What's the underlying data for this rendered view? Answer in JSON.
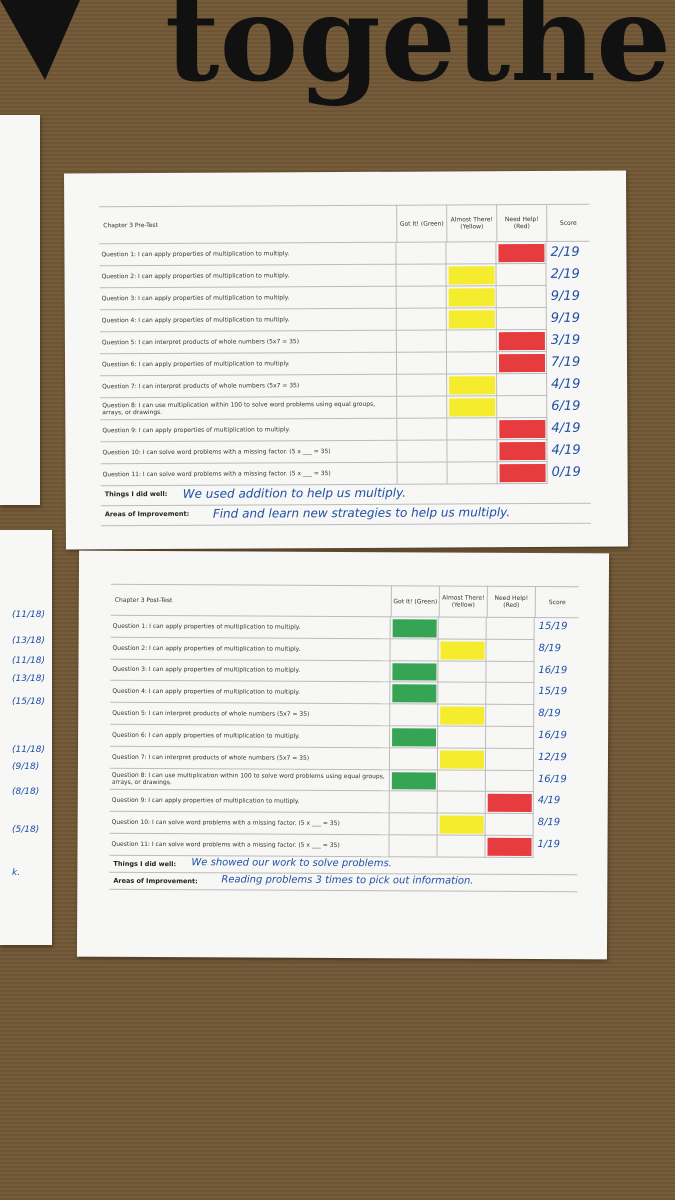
{
  "banner": {
    "text": "togethe"
  },
  "side_sheet": {
    "scores": [
      "(11/18)",
      "(13/18)",
      "(11/18)",
      "(13/18)",
      "(15/18)",
      "(11/18)",
      "(9/18)",
      "(8/18)",
      "(5/18)",
      "k."
    ]
  },
  "sheets": [
    {
      "title": "Chapter 3 Pre-Test",
      "headers": [
        "Got It! (Green)",
        "Almost There! (Yellow)",
        "Need Help! (Red)",
        "Score"
      ],
      "rows": [
        {
          "question": "Question 1: I can apply properties of multiplication to multiply.",
          "rating": "red",
          "score": "2/19"
        },
        {
          "question": "Question 2: I can apply properties of multiplication to multiply.",
          "rating": "yellow",
          "score": "2/19"
        },
        {
          "question": "Question 3: I can apply properties of multiplication to multiply.",
          "rating": "yellow",
          "score": "9/19"
        },
        {
          "question": "Question 4: I can apply properties of multiplication to multiply.",
          "rating": "yellow",
          "score": "9/19"
        },
        {
          "question": "Question 5: I can interpret products of whole numbers (5x7 = 35)",
          "rating": "red",
          "score": "3/19"
        },
        {
          "question": "Question 6: I can apply properties of multiplication to multiply.",
          "rating": "red",
          "score": "7/19"
        },
        {
          "question": "Question 7: I can interpret products of whole numbers (5x7 = 35)",
          "rating": "yellow",
          "score": "4/19"
        },
        {
          "question": "Question 8: I can use multiplication within 100 to solve word problems using equal groups, arrays, or drawings.",
          "rating": "yellow",
          "score": "6/19"
        },
        {
          "question": "Question 9: I can apply properties of multiplication to multiply.",
          "rating": "red",
          "score": "4/19"
        },
        {
          "question": "Question 10: I can solve word problems with a missing factor. (5 x ___ = 35)",
          "rating": "red",
          "score": "4/19"
        },
        {
          "question": "Question 11: I can solve word problems with a missing factor. (5 x ___ = 35)",
          "rating": "red",
          "score": "0/19"
        }
      ],
      "well_label": "Things I did well:",
      "well": "We used addition to help us multiply.",
      "improve_label": "Areas of Improvement:",
      "improve": "Find and learn new strategies to help us multiply."
    },
    {
      "title": "Chapter 3 Post-Test",
      "headers": [
        "Got It! (Green)",
        "Almost There! (Yellow)",
        "Need Help! (Red)",
        "Score"
      ],
      "rows": [
        {
          "question": "Question 1: I can apply properties of multiplication to multiply.",
          "rating": "green",
          "score": "15/19"
        },
        {
          "question": "Question 2: I can apply properties of multiplication to multiply.",
          "rating": "yellow",
          "score": "8/19"
        },
        {
          "question": "Question 3: I can apply properties of multiplication to multiply.",
          "rating": "green",
          "score": "16/19"
        },
        {
          "question": "Question 4: I can apply properties of multiplication to multiply.",
          "rating": "green",
          "score": "15/19"
        },
        {
          "question": "Question 5: I can interpret products of whole numbers (5x7 = 35)",
          "rating": "yellow",
          "score": "8/19"
        },
        {
          "question": "Question 6: I can apply properties of multiplication to multiply.",
          "rating": "green",
          "score": "16/19"
        },
        {
          "question": "Question 7: I can interpret products of whole numbers (5x7 = 35)",
          "rating": "yellow",
          "score": "12/19"
        },
        {
          "question": "Question 8: I can use multiplication within 100 to solve word problems using equal groups, arrays, or drawings.",
          "rating": "green",
          "score": "16/19"
        },
        {
          "question": "Question 9: I can apply properties of multiplication to multiply.",
          "rating": "red",
          "score": "4/19"
        },
        {
          "question": "Question 10: I can solve word problems with a missing factor. (5 x ___ = 35)",
          "rating": "yellow",
          "score": "8/19"
        },
        {
          "question": "Question 11: I can solve word problems with a missing factor. (5 x ___ = 35)",
          "rating": "red",
          "score": "1/19"
        }
      ],
      "well_label": "Things I did well:",
      "well": "We showed our work to solve problems.",
      "improve_label": "Areas of Improvement:",
      "improve": "Reading problems 3 times to pick out information."
    }
  ]
}
